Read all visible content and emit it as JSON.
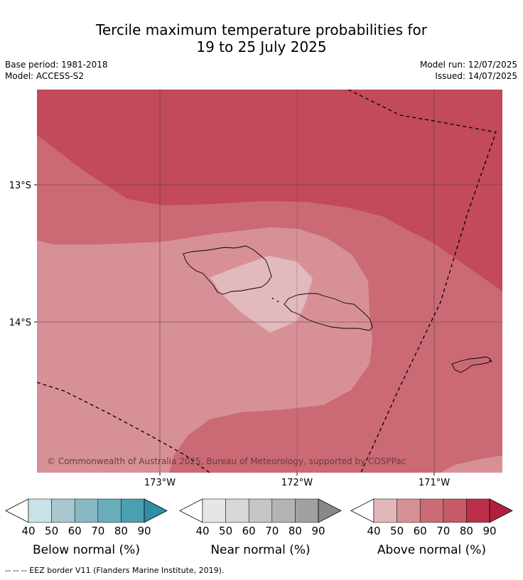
{
  "title_line1": "Tercile maximum temperature probabilities for",
  "title_line2": "19 to 25 July 2025",
  "meta": {
    "base_period": "Base period: 1981-2018",
    "model": "Model: ACCESS-S2",
    "model_run": "Model run: 12/07/2025",
    "issued": "Issued: 14/07/2025"
  },
  "map": {
    "copyright": "© Commonwealth of Australia 2025, Bureau of Meteorology, supported by COSPPac",
    "lon_labels": [
      "173°W",
      "172°W",
      "171°W"
    ],
    "lat_labels": [
      "13°S",
      "14°S"
    ]
  },
  "colorbars": [
    {
      "label": "Below normal (%)",
      "ticks": [
        "40",
        "50",
        "60",
        "70",
        "80",
        "90"
      ],
      "colors": [
        "#c8e2e8",
        "#a7c8cf",
        "#89b8c4",
        "#6aadbb",
        "#4a9fb0",
        "#2e8fa6"
      ]
    },
    {
      "label": "Near normal (%)",
      "ticks": [
        "40",
        "50",
        "60",
        "70",
        "80",
        "90"
      ],
      "colors": [
        "#e6e6e6",
        "#d7d7d7",
        "#c6c6c6",
        "#b3b3b3",
        "#a0a0a0",
        "#888888"
      ]
    },
    {
      "label": "Above normal (%)",
      "ticks": [
        "40",
        "50",
        "60",
        "70",
        "80",
        "90"
      ],
      "colors": [
        "#e2b7bb",
        "#d79196",
        "#cb6c74",
        "#c35a66",
        "#bb3048",
        "#b11f3f"
      ]
    }
  ],
  "footer": "--  --  -- EEZ border V11 (Flanders Marine Institute, 2019)."
}
